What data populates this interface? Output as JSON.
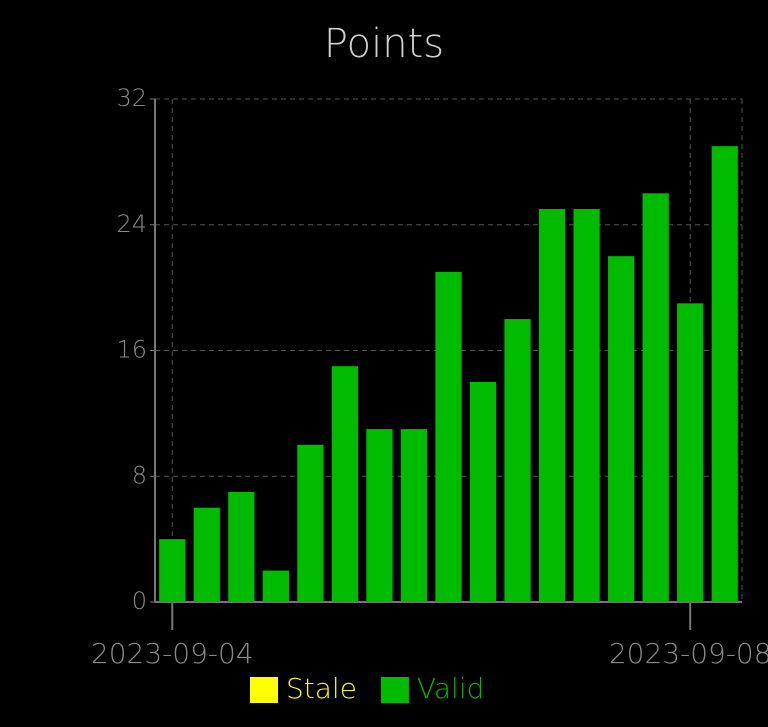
{
  "chart_data": {
    "type": "bar",
    "title": "Points",
    "categories": [
      "2023-09-04",
      null,
      null,
      null,
      null,
      null,
      null,
      null,
      null,
      null,
      null,
      null,
      null,
      null,
      null,
      "2023-09-08",
      null
    ],
    "series": [
      {
        "name": "Stale",
        "color": "#ffff00",
        "values": [
          0,
          0,
          0,
          0,
          0,
          0,
          0,
          0,
          0,
          0,
          0,
          0,
          0,
          0,
          0,
          0,
          0
        ]
      },
      {
        "name": "Valid",
        "color": "#00bb00",
        "values": [
          4,
          6,
          7,
          2,
          10,
          15,
          11,
          11,
          21,
          14,
          18,
          25,
          25,
          22,
          26,
          19,
          29
        ]
      }
    ],
    "stacked": true,
    "ylim": [
      0,
      32
    ],
    "yticks": [
      0,
      8,
      16,
      24,
      32
    ],
    "grid": true
  }
}
